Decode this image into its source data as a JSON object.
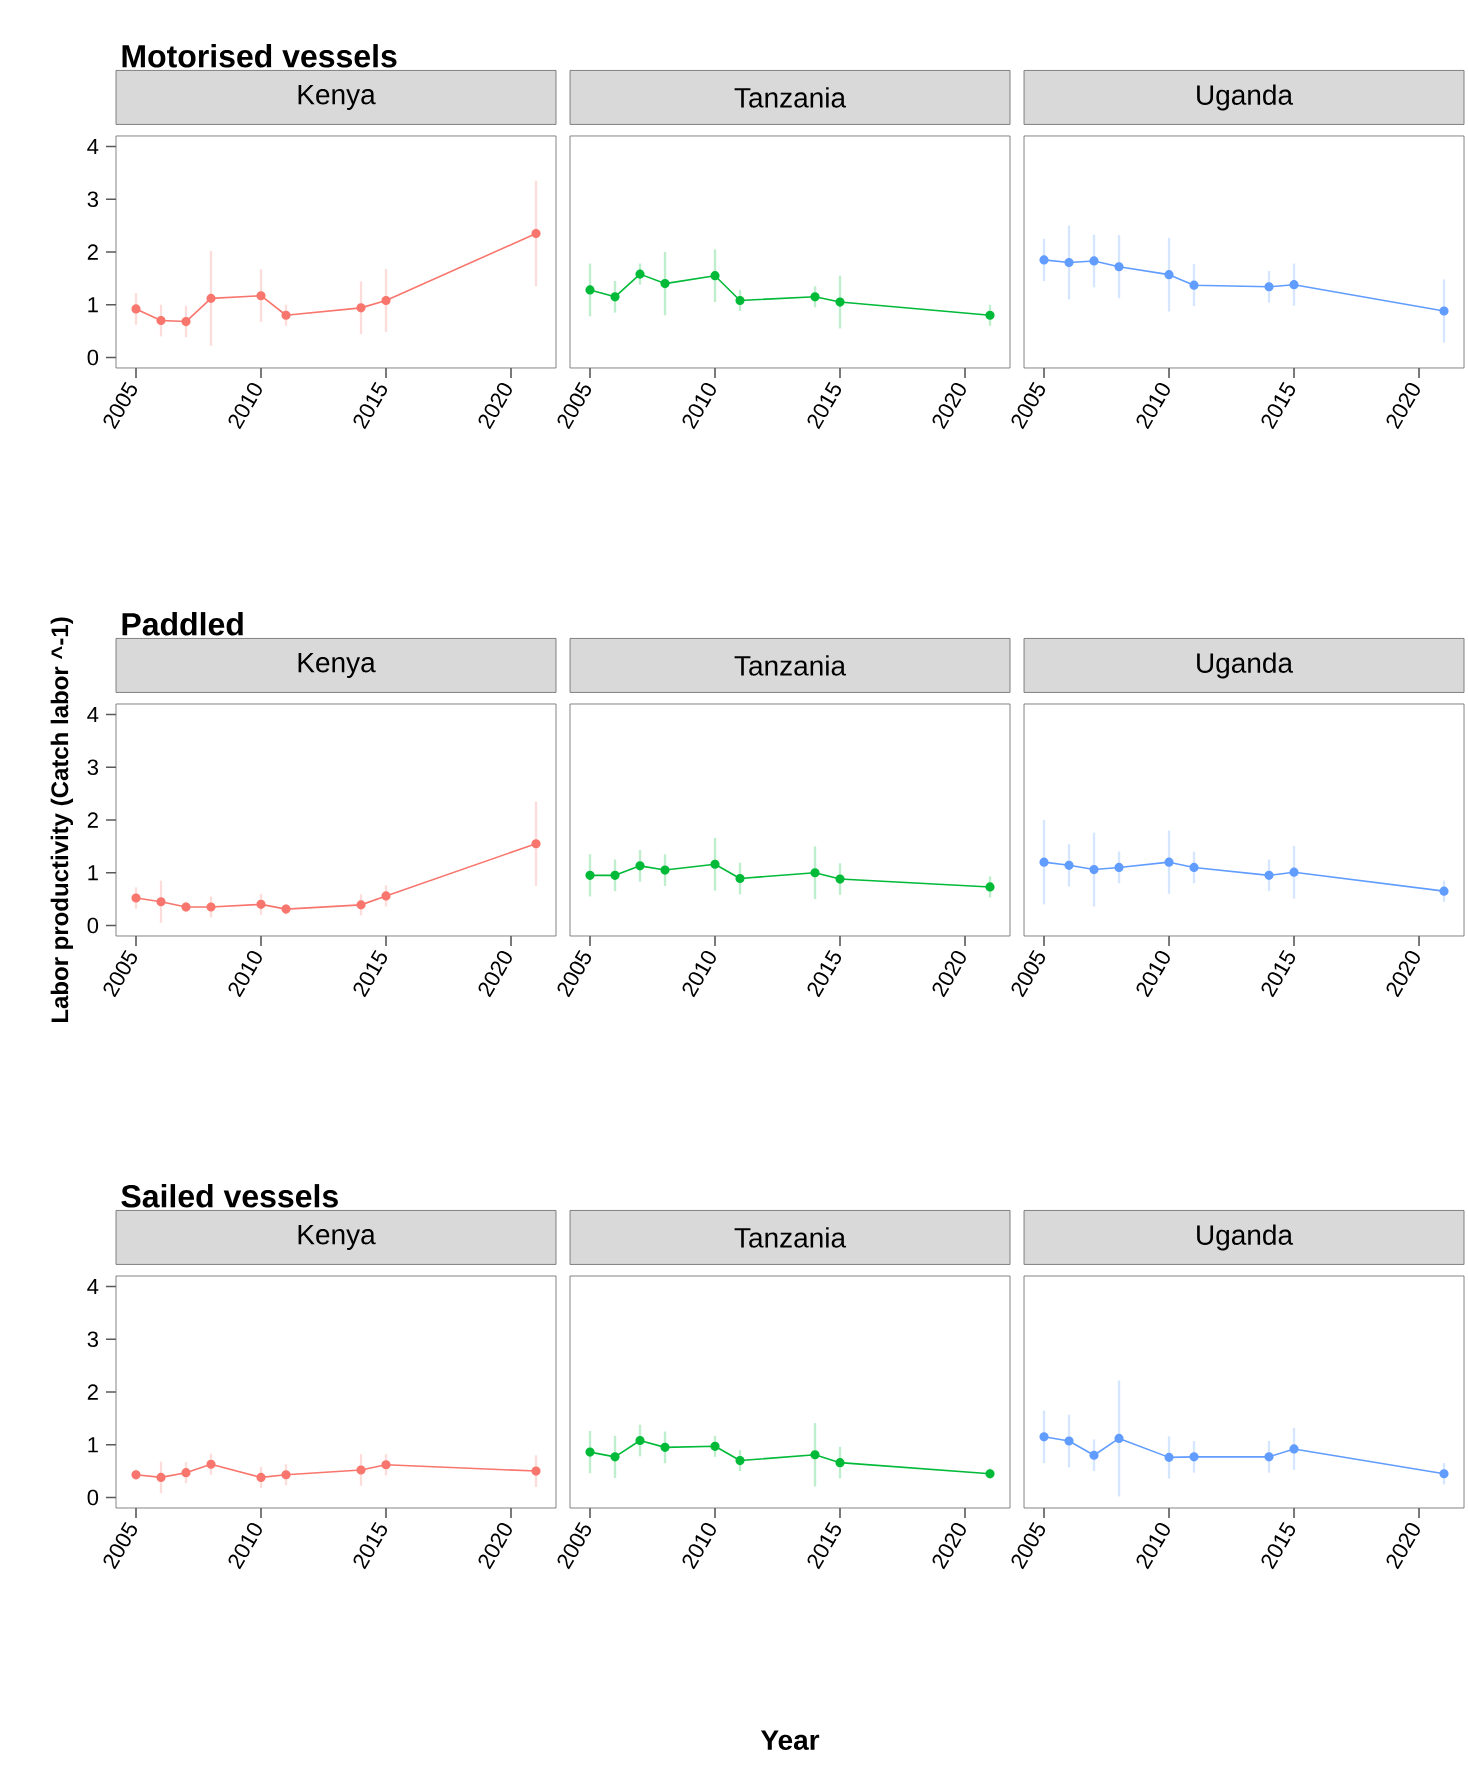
{
  "chart_data": [
    {
      "type": "line",
      "title": "Motorised vessels",
      "subtitle": "Kenya",
      "x": [
        2005,
        2006,
        2007,
        2008,
        2010,
        2011,
        2014,
        2015,
        2021
      ],
      "values": [
        0.92,
        0.7,
        0.68,
        1.12,
        1.17,
        0.8,
        0.94,
        1.08,
        2.35
      ],
      "errors": [
        0.3,
        0.3,
        0.3,
        0.9,
        0.5,
        0.2,
        0.5,
        0.6,
        1.0
      ],
      "color": "#f8766d",
      "marker": "circle",
      "xlim": [
        2004.2,
        2021.8
      ],
      "ylim": [
        -0.2,
        4.2
      ],
      "xticks": [
        2005,
        2010,
        2015,
        2020
      ],
      "yticks": [
        0,
        1,
        2,
        3,
        4
      ]
    },
    {
      "type": "line",
      "subtitle": "Tanzania",
      "x": [
        2005,
        2006,
        2007,
        2008,
        2010,
        2011,
        2014,
        2015,
        2021
      ],
      "values": [
        1.28,
        1.15,
        1.58,
        1.4,
        1.55,
        1.08,
        1.15,
        1.05,
        0.8
      ],
      "errors": [
        0.5,
        0.3,
        0.2,
        0.6,
        0.5,
        0.2,
        0.2,
        0.5,
        0.2
      ],
      "color": "#00ba38",
      "marker": "circle",
      "xlim": [
        2004.2,
        2021.8
      ],
      "ylim": [
        -0.2,
        4.2
      ],
      "xticks": [
        2005,
        2010,
        2015,
        2020
      ],
      "yticks": [
        0,
        1,
        2,
        3,
        4
      ],
      "tick_labels": "x"
    },
    {
      "type": "line",
      "subtitle": "Uganda",
      "x": [
        2005,
        2006,
        2007,
        2008,
        2010,
        2011,
        2014,
        2015,
        2021
      ],
      "values": [
        1.85,
        1.8,
        1.83,
        1.72,
        1.57,
        1.37,
        1.34,
        1.38,
        0.88
      ],
      "errors": [
        0.4,
        0.7,
        0.5,
        0.6,
        0.7,
        0.4,
        0.3,
        0.4,
        0.6
      ],
      "color": "#619cff",
      "marker": "circle",
      "xlim": [
        2004.2,
        2021.8
      ],
      "ylim": [
        -0.2,
        4.2
      ],
      "xticks": [
        2005,
        2010,
        2015,
        2020
      ],
      "yticks": [
        0,
        1,
        2,
        3,
        4
      ],
      "tick_labels": "x"
    },
    {
      "type": "line",
      "title": "Paddled",
      "subtitle": "Kenya",
      "ylabel": "Labor productivity (Catch labor ^-1)",
      "x": [
        2005,
        2006,
        2007,
        2008,
        2010,
        2011,
        2014,
        2015,
        2021
      ],
      "values": [
        0.52,
        0.45,
        0.35,
        0.35,
        0.4,
        0.31,
        0.39,
        0.56,
        1.55
      ],
      "errors": [
        0.2,
        0.4,
        0.1,
        0.2,
        0.2,
        0.1,
        0.2,
        0.2,
        0.8
      ],
      "color": "#f8766d",
      "marker": "circle",
      "xlim": [
        2004.2,
        2021.8
      ],
      "ylim": [
        -0.2,
        4.2
      ],
      "xticks": [
        2005,
        2010,
        2015,
        2020
      ],
      "yticks": [
        0,
        1,
        2,
        3,
        4
      ]
    },
    {
      "type": "line",
      "subtitle": "Tanzania",
      "x": [
        2005,
        2006,
        2007,
        2008,
        2010,
        2011,
        2014,
        2015,
        2021
      ],
      "values": [
        0.95,
        0.95,
        1.13,
        1.05,
        1.16,
        0.89,
        1.0,
        0.88,
        0.73
      ],
      "errors": [
        0.4,
        0.3,
        0.3,
        0.3,
        0.5,
        0.3,
        0.5,
        0.3,
        0.2
      ],
      "color": "#00ba38",
      "marker": "circle",
      "xlim": [
        2004.2,
        2021.8
      ],
      "ylim": [
        -0.2,
        4.2
      ],
      "xticks": [
        2005,
        2010,
        2015,
        2020
      ],
      "yticks": [
        0,
        1,
        2,
        3,
        4
      ],
      "tick_labels": "x"
    },
    {
      "type": "line",
      "subtitle": "Uganda",
      "x": [
        2005,
        2006,
        2007,
        2008,
        2010,
        2011,
        2014,
        2015,
        2021
      ],
      "values": [
        1.2,
        1.14,
        1.06,
        1.1,
        1.2,
        1.1,
        0.95,
        1.01,
        0.65
      ],
      "errors": [
        0.8,
        0.4,
        0.7,
        0.3,
        0.6,
        0.3,
        0.3,
        0.5,
        0.2
      ],
      "color": "#619cff",
      "marker": "circle",
      "xlim": [
        2004.2,
        2021.8
      ],
      "ylim": [
        -0.2,
        4.2
      ],
      "xticks": [
        2005,
        2010,
        2015,
        2020
      ],
      "yticks": [
        0,
        1,
        2,
        3,
        4
      ],
      "tick_labels": "x"
    },
    {
      "type": "line",
      "title": "Sailed vessels",
      "subtitle": "Kenya",
      "x": [
        2005,
        2006,
        2007,
        2008,
        2010,
        2011,
        2014,
        2015,
        2021
      ],
      "values": [
        0.43,
        0.38,
        0.47,
        0.63,
        0.38,
        0.43,
        0.52,
        0.62,
        0.5
      ],
      "errors": [
        0.1,
        0.3,
        0.2,
        0.2,
        0.2,
        0.2,
        0.3,
        0.2,
        0.3
      ],
      "color": "#f8766d",
      "marker": "circle",
      "xlim": [
        2004.2,
        2021.8
      ],
      "ylim": [
        -0.2,
        4.2
      ],
      "xticks": [
        2005,
        2010,
        2015,
        2020
      ],
      "yticks": [
        0,
        1,
        2,
        3,
        4
      ]
    },
    {
      "type": "line",
      "subtitle": "Tanzania",
      "xlabel": "Year",
      "x": [
        2005,
        2006,
        2007,
        2008,
        2010,
        2011,
        2014,
        2015,
        2021
      ],
      "values": [
        0.86,
        0.77,
        1.08,
        0.95,
        0.97,
        0.7,
        0.81,
        0.66,
        0.45
      ],
      "errors": [
        0.4,
        0.4,
        0.3,
        0.3,
        0.2,
        0.2,
        0.6,
        0.3,
        0.1
      ],
      "color": "#00ba38",
      "marker": "circle",
      "xlim": [
        2004.2,
        2021.8
      ],
      "ylim": [
        -0.2,
        4.2
      ],
      "xticks": [
        2005,
        2010,
        2015,
        2020
      ],
      "yticks": [
        0,
        1,
        2,
        3,
        4
      ],
      "tick_labels": "x"
    },
    {
      "type": "line",
      "subtitle": "Uganda",
      "x": [
        2005,
        2006,
        2007,
        2008,
        2010,
        2011,
        2014,
        2015,
        2021
      ],
      "values": [
        1.15,
        1.07,
        0.8,
        1.12,
        0.76,
        0.77,
        0.77,
        0.92,
        0.45
      ],
      "errors": [
        0.5,
        0.5,
        0.3,
        1.1,
        0.4,
        0.3,
        0.3,
        0.4,
        0.2
      ],
      "color": "#619cff",
      "marker": "circle",
      "xlim": [
        2004.2,
        2021.8
      ],
      "ylim": [
        -0.2,
        4.2
      ],
      "xticks": [
        2005,
        2010,
        2015,
        2020
      ],
      "yticks": [
        0,
        1,
        2,
        3,
        4
      ],
      "tick_labels": "x"
    }
  ]
}
